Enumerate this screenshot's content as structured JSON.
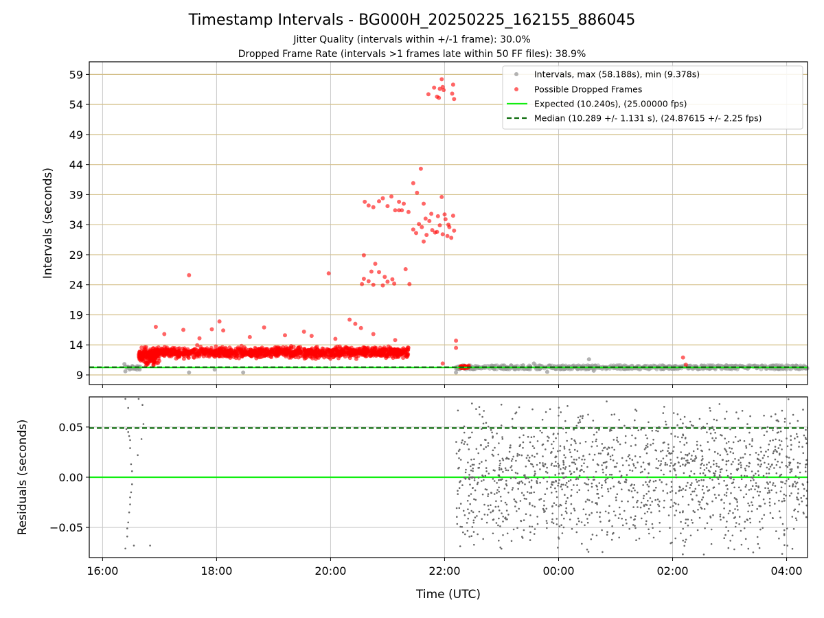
{
  "chart_data": [
    {
      "type": "scatter",
      "title": "Timestamp Intervals - BG000H_20250225_162155_886045",
      "subtitle_1": "Jitter Quality (intervals within +/-1 frame): 30.0%",
      "subtitle_2": "Dropped Frame Rate (intervals >1 frames late within 50 FF files): 38.9%",
      "ylabel": "Intervals (seconds)",
      "xlim": [
        "2025-02-25T15:46:00",
        "2025-02-26T04:22:00"
      ],
      "ylim": [
        7.4,
        61.1
      ],
      "y_ticks": [
        9,
        14,
        19,
        24,
        29,
        34,
        39,
        44,
        49,
        54,
        59
      ],
      "y_tick_labels": [
        "9",
        "14",
        "19",
        "24",
        "29",
        "34",
        "39",
        "44",
        "49",
        "54",
        "59"
      ],
      "grid": true,
      "legend_position": "top-right",
      "legend": [
        "Intervals, max (58.188s), min (9.378s)",
        "Possible Dropped Frames",
        "Expected (10.240s), (25.00000 fps)",
        "Median (10.289 +/- 1.131 s), (24.87615 +/- 2.25 fps)"
      ],
      "expected_interval": 10.24,
      "median_interval": 10.289,
      "series": [
        {
          "name": "Possible Dropped Frames",
          "points": [
            [
              "2025-02-25T17:31:00",
              25.6
            ],
            [
              "2025-02-25T19:58:00",
              25.9
            ],
            [
              "2025-02-25T20:20:00",
              18.2
            ],
            [
              "2025-02-25T20:26:00",
              17.5
            ],
            [
              "2025-02-25T18:03:00",
              17.9
            ],
            [
              "2025-02-25T16:56:00",
              17.0
            ],
            [
              "2025-02-25T18:50:00",
              16.9
            ],
            [
              "2025-02-25T19:32:00",
              16.2
            ],
            [
              "2025-02-25T20:32:00",
              16.8
            ],
            [
              "2025-02-25T17:55:00",
              16.6
            ],
            [
              "2025-02-25T18:07:00",
              16.4
            ],
            [
              "2025-02-25T17:05:00",
              15.8
            ],
            [
              "2025-02-25T17:25:00",
              16.5
            ],
            [
              "2025-02-25T19:40:00",
              15.5
            ],
            [
              "2025-02-25T20:45:00",
              15.8
            ],
            [
              "2025-02-25T18:35:00",
              15.3
            ],
            [
              "2025-02-25T19:12:00",
              15.6
            ],
            [
              "2025-02-25T17:42:00",
              15.1
            ],
            [
              "2025-02-25T20:05:00",
              15.0
            ],
            [
              "2025-02-25T21:08:00",
              14.8
            ],
            [
              "2025-02-25T22:12:00",
              14.7
            ],
            [
              "2025-02-25T22:12:00",
              13.5
            ],
            [
              "2025-02-25T21:58:00",
              10.9
            ],
            [
              "2025-02-26T02:11:00",
              11.9
            ],
            [
              "2025-02-26T02:14:00",
              10.7
            ],
            [
              "2025-02-25T20:35:00",
              28.9
            ],
            [
              "2025-02-25T20:43:00",
              26.2
            ],
            [
              "2025-02-25T20:47:00",
              27.5
            ],
            [
              "2025-02-25T20:51:00",
              26.1
            ],
            [
              "2025-02-25T20:57:00",
              25.3
            ],
            [
              "2025-02-25T21:05:00",
              24.9
            ],
            [
              "2025-02-25T20:33:00",
              24.1
            ],
            [
              "2025-02-25T20:40:00",
              24.6
            ],
            [
              "2025-02-25T20:45:00",
              24.0
            ],
            [
              "2025-02-25T20:55:00",
              23.9
            ],
            [
              "2025-02-25T21:00:00",
              24.5
            ],
            [
              "2025-02-25T21:07:00",
              24.2
            ],
            [
              "2025-02-25T21:19:00",
              26.6
            ],
            [
              "2025-02-25T21:23:00",
              24.1
            ],
            [
              "2025-02-25T20:35:00",
              25.0
            ],
            [
              "2025-02-25T20:36:00",
              37.8
            ],
            [
              "2025-02-25T20:40:00",
              37.2
            ],
            [
              "2025-02-25T20:45:00",
              36.9
            ],
            [
              "2025-02-25T20:51:00",
              37.9
            ],
            [
              "2025-02-25T20:55:00",
              38.4
            ],
            [
              "2025-02-25T21:00:00",
              37.1
            ],
            [
              "2025-02-25T21:04:00",
              38.7
            ],
            [
              "2025-02-25T21:08:00",
              36.4
            ],
            [
              "2025-02-25T21:12:00",
              37.8
            ],
            [
              "2025-02-25T21:17:00",
              37.5
            ],
            [
              "2025-02-25T21:22:00",
              36.1
            ],
            [
              "2025-02-25T21:27:00",
              40.9
            ],
            [
              "2025-02-25T21:31:00",
              39.3
            ],
            [
              "2025-02-25T21:35:00",
              43.3
            ],
            [
              "2025-02-25T21:38:00",
              37.5
            ],
            [
              "2025-02-25T21:12:00",
              36.4
            ],
            [
              "2025-02-25T21:15:00",
              36.4
            ],
            [
              "2025-02-25T21:27:00",
              33.2
            ],
            [
              "2025-02-25T21:30:00",
              32.6
            ],
            [
              "2025-02-25T21:33:00",
              34.1
            ],
            [
              "2025-02-25T21:36:00",
              33.6
            ],
            [
              "2025-02-25T21:38:00",
              31.2
            ],
            [
              "2025-02-25T21:41:00",
              32.3
            ],
            [
              "2025-02-25T21:44:00",
              34.6
            ],
            [
              "2025-02-25T21:47:00",
              33.1
            ],
            [
              "2025-02-25T21:50:00",
              32.7
            ],
            [
              "2025-02-25T21:53:00",
              35.4
            ],
            [
              "2025-02-25T21:55:00",
              33.9
            ],
            [
              "2025-02-25T21:58:00",
              32.4
            ],
            [
              "2025-02-25T22:01:00",
              34.9
            ],
            [
              "2025-02-25T22:03:00",
              32.1
            ],
            [
              "2025-02-25T22:05:00",
              33.6
            ],
            [
              "2025-02-25T22:07:00",
              31.8
            ],
            [
              "2025-02-25T22:09:00",
              35.5
            ],
            [
              "2025-02-25T22:10:00",
              33.0
            ],
            [
              "2025-02-25T21:40:00",
              35.0
            ],
            [
              "2025-02-25T21:46:00",
              35.8
            ],
            [
              "2025-02-25T21:52:00",
              32.8
            ],
            [
              "2025-02-25T21:57:00",
              38.6
            ],
            [
              "2025-02-25T22:00:00",
              35.7
            ],
            [
              "2025-02-25T22:04:00",
              34.0
            ],
            [
              "2025-02-25T21:43:00",
              55.7
            ],
            [
              "2025-02-25T21:49:00",
              56.8
            ],
            [
              "2025-02-25T21:52:00",
              55.3
            ],
            [
              "2025-02-25T21:54:00",
              55.1
            ],
            [
              "2025-02-25T21:55:00",
              56.6
            ],
            [
              "2025-02-25T21:58:00",
              56.9
            ],
            [
              "2025-02-25T21:59:00",
              56.4
            ],
            [
              "2025-02-25T21:57:00",
              58.2
            ],
            [
              "2025-02-25T22:08:00",
              55.8
            ],
            [
              "2025-02-25T22:09:00",
              57.3
            ],
            [
              "2025-02-25T22:10:00",
              54.9
            ]
          ],
          "cluster_regions": [
            {
              "x_start": "2025-02-25T16:38:00",
              "x_end": "2025-02-25T17:00:00",
              "y_range": [
                10.0,
                14.2
              ]
            },
            {
              "x_start": "2025-02-25T16:50:00",
              "x_end": "2025-02-25T21:22:00",
              "y_range": [
                11.5,
                14.0
              ]
            },
            {
              "x_start": "2025-02-25T22:16:00",
              "x_end": "2025-02-25T22:26:00",
              "y_range": [
                10.0,
                10.6
              ]
            }
          ]
        },
        {
          "name": "Intervals, max (58.188s), min (9.378s)",
          "points": [
            [
              "2025-02-25T16:23:00",
              10.8
            ],
            [
              "2025-02-25T16:24:00",
              9.6
            ],
            [
              "2025-02-25T17:31:00",
              9.4
            ],
            [
              "2025-02-25T17:58:00",
              9.9
            ],
            [
              "2025-02-25T18:28:00",
              9.4
            ],
            [
              "2025-02-25T22:12:00",
              9.4
            ],
            [
              "2025-02-25T23:34:00",
              10.9
            ],
            [
              "2025-02-25T23:48:00",
              9.5
            ],
            [
              "2025-02-26T00:32:00",
              11.6
            ],
            [
              "2025-02-26T00:37:00",
              9.7
            ]
          ],
          "band_regions": [
            {
              "x_start": "2025-02-25T16:23:00",
              "x_end": "2025-02-25T16:40:00",
              "y_range": [
                9.6,
                10.8
              ]
            },
            {
              "x_start": "2025-02-25T22:12:00",
              "x_end": "2025-02-26T04:22:00",
              "y_range": [
                9.7,
                10.9
              ]
            }
          ]
        }
      ]
    },
    {
      "type": "scatter",
      "ylabel": "Residuals (seconds)",
      "xlabel": "Time (UTC)",
      "xlim": [
        "2025-02-25T15:46:00",
        "2025-02-26T04:22:00"
      ],
      "ylim": [
        -0.08,
        0.08
      ],
      "x_ticks": [
        "2025-02-25T16:00:00",
        "2025-02-25T18:00:00",
        "2025-02-25T20:00:00",
        "2025-02-25T22:00:00",
        "2025-02-26T00:00:00",
        "2025-02-26T02:00:00",
        "2025-02-26T04:00:00"
      ],
      "x_tick_labels": [
        "16:00",
        "18:00",
        "20:00",
        "22:00",
        "00:00",
        "02:00",
        "04:00"
      ],
      "y_ticks": [
        -0.05,
        0.0,
        0.05
      ],
      "y_tick_labels": [
        "−0.05",
        "0.00",
        "0.05"
      ],
      "grid": true,
      "zero_line": 0.0,
      "median_residual": 0.049,
      "series": [
        {
          "name": "residuals",
          "points": [
            [
              "2025-02-25T16:24:00",
              0.078
            ],
            [
              "2025-02-25T16:27:00",
              0.069
            ],
            [
              "2025-02-25T16:25:00",
              0.048
            ],
            [
              "2025-02-25T16:27:00",
              0.045
            ],
            [
              "2025-02-25T16:28:00",
              0.041
            ],
            [
              "2025-02-25T16:29:00",
              0.037
            ],
            [
              "2025-02-25T16:29:00",
              0.029
            ],
            [
              "2025-02-25T16:30:00",
              0.013
            ],
            [
              "2025-02-25T16:31:00",
              0.006
            ],
            [
              "2025-02-25T16:31:00",
              -0.007
            ],
            [
              "2025-02-25T16:30:00",
              -0.015
            ],
            [
              "2025-02-25T16:29:00",
              -0.02
            ],
            [
              "2025-02-25T16:29:00",
              -0.027
            ],
            [
              "2025-02-25T16:28:00",
              -0.035
            ],
            [
              "2025-02-25T16:27:00",
              -0.045
            ],
            [
              "2025-02-25T16:26:00",
              -0.051
            ],
            [
              "2025-02-25T16:26:00",
              -0.059
            ],
            [
              "2025-02-25T16:24:00",
              -0.071
            ],
            [
              "2025-02-25T16:38:00",
              0.078
            ],
            [
              "2025-02-25T16:42:00",
              0.072
            ],
            [
              "2025-02-25T16:43:00",
              0.053
            ],
            [
              "2025-02-25T16:41:00",
              0.038
            ],
            [
              "2025-02-25T16:37:00",
              0.022
            ],
            [
              "2025-02-25T16:33:00",
              -0.068
            ],
            [
              "2025-02-25T16:50:00",
              -0.068
            ]
          ],
          "band_region": {
            "x_start": "2025-02-25T22:12:00",
            "x_end": "2025-02-26T04:22:00",
            "y_range": [
              -0.08,
              0.08
            ]
          }
        }
      ]
    }
  ],
  "colors": {
    "dropped": "#ff0000",
    "interval": "#999999",
    "residual": "#666666",
    "expected": "#11ee11",
    "median": "#0a6a0a",
    "hgrid": "#d4c08a",
    "vgrid": "#c8c8c8"
  }
}
